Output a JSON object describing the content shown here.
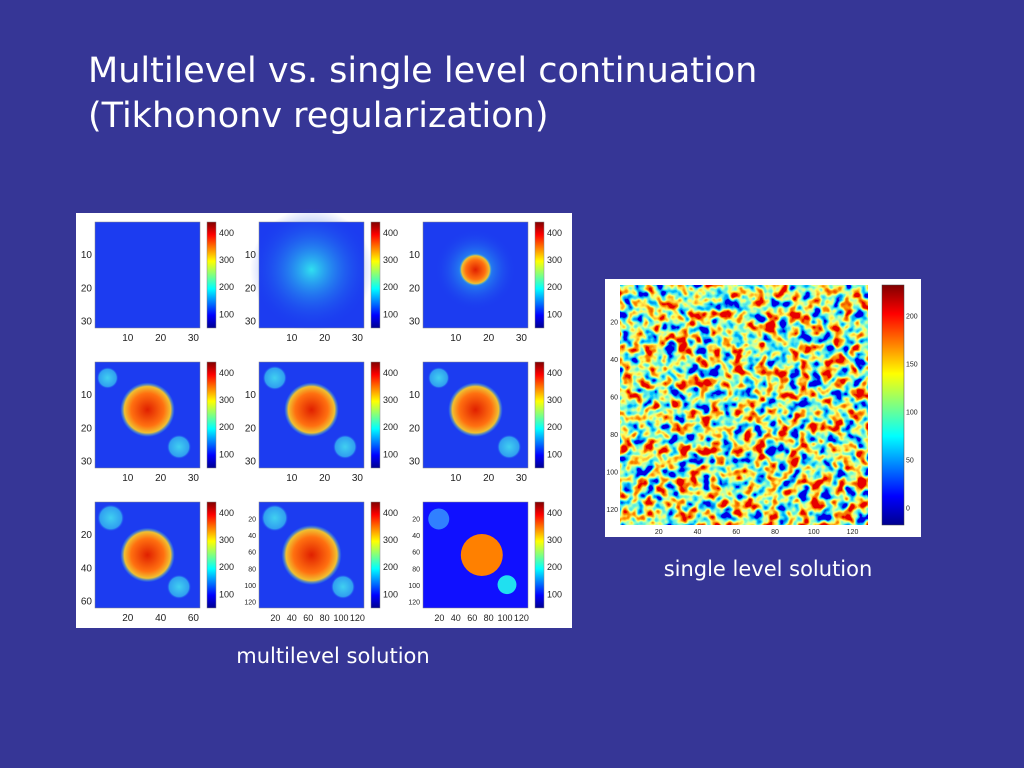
{
  "title": [
    "Multilevel vs. single level continuation",
    "(Tikhononv regularization)"
  ],
  "multilevel": {
    "caption": "multilevel solution",
    "panels": [
      {
        "yticks": [
          "10",
          "20",
          "30"
        ],
        "xticks": [
          "10",
          "20",
          "30"
        ],
        "cbar": [
          "400",
          "300",
          "200",
          "100"
        ]
      },
      {
        "yticks": [
          "10",
          "20",
          "30"
        ],
        "xticks": [
          "10",
          "20",
          "30"
        ],
        "cbar": [
          "400",
          "300",
          "200",
          "100"
        ]
      },
      {
        "yticks": [
          "10",
          "20",
          "30"
        ],
        "xticks": [
          "10",
          "20",
          "30"
        ],
        "cbar": [
          "400",
          "300",
          "200",
          "100"
        ]
      },
      {
        "yticks": [
          "10",
          "20",
          "30"
        ],
        "xticks": [
          "10",
          "20",
          "30"
        ],
        "cbar": [
          "400",
          "300",
          "200",
          "100"
        ]
      },
      {
        "yticks": [
          "10",
          "20",
          "30"
        ],
        "xticks": [
          "10",
          "20",
          "30"
        ],
        "cbar": [
          "400",
          "300",
          "200",
          "100"
        ]
      },
      {
        "yticks": [
          "10",
          "20",
          "30"
        ],
        "xticks": [
          "10",
          "20",
          "30"
        ],
        "cbar": [
          "400",
          "300",
          "200",
          "100"
        ]
      },
      {
        "yticks": [
          "20",
          "40",
          "60"
        ],
        "xticks": [
          "20",
          "40",
          "60"
        ],
        "cbar": [
          "400",
          "300",
          "200",
          "100"
        ]
      },
      {
        "yticks": [
          "20",
          "40",
          "60",
          "80",
          "100",
          "120"
        ],
        "xticks": [
          "20",
          "40",
          "60",
          "80",
          "100",
          "120"
        ],
        "cbar": [
          "400",
          "300",
          "200",
          "100"
        ]
      },
      {
        "yticks": [
          "20",
          "40",
          "60",
          "80",
          "100",
          "120"
        ],
        "xticks": [
          "20",
          "40",
          "60",
          "80",
          "100",
          "120"
        ],
        "cbar": [
          "400",
          "300",
          "200",
          "100"
        ]
      }
    ]
  },
  "single_level": {
    "caption": "single level solution",
    "yticks": [
      "20",
      "40",
      "60",
      "80",
      "100",
      "120"
    ],
    "xticks": [
      "20",
      "40",
      "60",
      "80",
      "100",
      "120"
    ],
    "cbar": [
      "200",
      "150",
      "100",
      "50",
      "0"
    ]
  }
}
